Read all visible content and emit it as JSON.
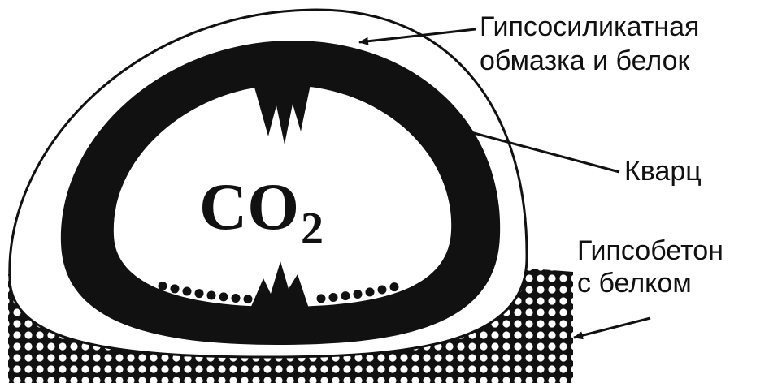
{
  "labels": {
    "coating": [
      "Гипсосиликатная",
      "обмазка и белок"
    ],
    "quartz": "Кварц",
    "concrete": [
      "Гипсобетон",
      "с белком"
    ],
    "gas": {
      "main": "CO",
      "sub": "2"
    }
  }
}
